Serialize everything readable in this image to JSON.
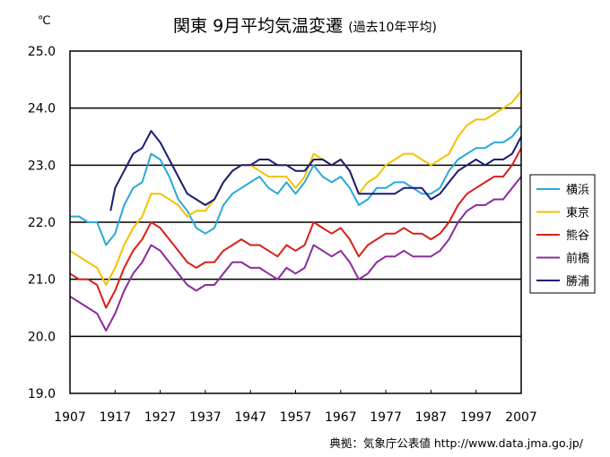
{
  "chart_data": {
    "type": "line",
    "title": "関東 9月平均気温変遷",
    "subtitle": "(過去10年平均)",
    "ylabel": "℃",
    "source": "典拠：気象庁公表値 http://www.data.jma.go.jp/",
    "ylim": [
      19.0,
      25.0
    ],
    "xlim": [
      1907,
      2007
    ],
    "y_ticks": [
      "19.0",
      "20.0",
      "21.0",
      "22.0",
      "23.0",
      "24.0",
      "25.0"
    ],
    "x_ticks": [
      "1907",
      "1917",
      "1927",
      "1937",
      "1947",
      "1957",
      "1967",
      "1977",
      "1987",
      "1997",
      "2007"
    ],
    "grid": true,
    "legend_position": "right",
    "series": [
      {
        "name": "横浜",
        "color": "#29a9d8",
        "x": [
          1907,
          1909,
          1911,
          1913,
          1915,
          1917,
          1919,
          1921,
          1923,
          1925,
          1927,
          1929,
          1931,
          1933,
          1935,
          1937,
          1939,
          1941,
          1943,
          1945,
          1947,
          1949,
          1951,
          1953,
          1955,
          1957,
          1959,
          1961,
          1963,
          1965,
          1967,
          1969,
          1971,
          1973,
          1975,
          1977,
          1979,
          1981,
          1983,
          1985,
          1987,
          1989,
          1991,
          1993,
          1995,
          1997,
          1999,
          2001,
          2003,
          2005,
          2007
        ],
        "values": [
          22.1,
          22.1,
          22.0,
          22.0,
          21.6,
          21.8,
          22.3,
          22.6,
          22.7,
          23.2,
          23.1,
          22.8,
          22.4,
          22.2,
          21.9,
          21.8,
          21.9,
          22.3,
          22.5,
          22.6,
          22.7,
          22.8,
          22.6,
          22.5,
          22.7,
          22.5,
          22.7,
          23.0,
          22.8,
          22.7,
          22.8,
          22.6,
          22.3,
          22.4,
          22.6,
          22.6,
          22.7,
          22.7,
          22.6,
          22.5,
          22.5,
          22.6,
          22.9,
          23.1,
          23.2,
          23.3,
          23.3,
          23.4,
          23.4,
          23.5,
          23.7
        ]
      },
      {
        "name": "東京",
        "color": "#f2c200",
        "x": [
          1907,
          1909,
          1911,
          1913,
          1915,
          1917,
          1919,
          1921,
          1923,
          1925,
          1927,
          1929,
          1931,
          1933,
          1935,
          1937,
          1939,
          1941,
          1943,
          1945,
          1947,
          1949,
          1951,
          1953,
          1955,
          1957,
          1959,
          1961,
          1963,
          1965,
          1967,
          1969,
          1971,
          1973,
          1975,
          1977,
          1979,
          1981,
          1983,
          1985,
          1987,
          1989,
          1991,
          1993,
          1995,
          1997,
          1999,
          2001,
          2003,
          2005,
          2007
        ],
        "values": [
          21.5,
          21.4,
          21.3,
          21.2,
          20.9,
          21.2,
          21.6,
          21.9,
          22.1,
          22.5,
          22.5,
          22.4,
          22.3,
          22.1,
          22.2,
          22.2,
          22.4,
          22.7,
          22.9,
          23.0,
          23.0,
          22.9,
          22.8,
          22.8,
          22.8,
          22.6,
          22.8,
          23.2,
          23.1,
          23.0,
          23.1,
          22.9,
          22.5,
          22.7,
          22.8,
          23.0,
          23.1,
          23.2,
          23.2,
          23.1,
          23.0,
          23.1,
          23.2,
          23.5,
          23.7,
          23.8,
          23.8,
          23.9,
          24.0,
          24.1,
          24.3
        ]
      },
      {
        "name": "熊谷",
        "color": "#d82018",
        "x": [
          1907,
          1909,
          1911,
          1913,
          1915,
          1917,
          1919,
          1921,
          1923,
          1925,
          1927,
          1929,
          1931,
          1933,
          1935,
          1937,
          1939,
          1941,
          1943,
          1945,
          1947,
          1949,
          1951,
          1953,
          1955,
          1957,
          1959,
          1961,
          1963,
          1965,
          1967,
          1969,
          1971,
          1973,
          1975,
          1977,
          1979,
          1981,
          1983,
          1985,
          1987,
          1989,
          1991,
          1993,
          1995,
          1997,
          1999,
          2001,
          2003,
          2005,
          2007
        ],
        "values": [
          21.1,
          21.0,
          21.0,
          20.9,
          20.5,
          20.8,
          21.2,
          21.5,
          21.7,
          22.0,
          21.9,
          21.7,
          21.5,
          21.3,
          21.2,
          21.3,
          21.3,
          21.5,
          21.6,
          21.7,
          21.6,
          21.6,
          21.5,
          21.4,
          21.6,
          21.5,
          21.6,
          22.0,
          21.9,
          21.8,
          21.9,
          21.7,
          21.4,
          21.6,
          21.7,
          21.8,
          21.8,
          21.9,
          21.8,
          21.8,
          21.7,
          21.8,
          22.0,
          22.3,
          22.5,
          22.6,
          22.7,
          22.8,
          22.8,
          23.0,
          23.3
        ]
      },
      {
        "name": "前橋",
        "color": "#8b2b9e",
        "x": [
          1907,
          1909,
          1911,
          1913,
          1915,
          1917,
          1919,
          1921,
          1923,
          1925,
          1927,
          1929,
          1931,
          1933,
          1935,
          1937,
          1939,
          1941,
          1943,
          1945,
          1947,
          1949,
          1951,
          1953,
          1955,
          1957,
          1959,
          1961,
          1963,
          1965,
          1967,
          1969,
          1971,
          1973,
          1975,
          1977,
          1979,
          1981,
          1983,
          1985,
          1987,
          1989,
          1991,
          1993,
          1995,
          1997,
          1999,
          2001,
          2003,
          2005,
          2007
        ],
        "values": [
          20.7,
          20.6,
          20.5,
          20.4,
          20.1,
          20.4,
          20.8,
          21.1,
          21.3,
          21.6,
          21.5,
          21.3,
          21.1,
          20.9,
          20.8,
          20.9,
          20.9,
          21.1,
          21.3,
          21.3,
          21.2,
          21.2,
          21.1,
          21.0,
          21.2,
          21.1,
          21.2,
          21.6,
          21.5,
          21.4,
          21.5,
          21.3,
          21.0,
          21.1,
          21.3,
          21.4,
          21.4,
          21.5,
          21.4,
          21.4,
          21.4,
          21.5,
          21.7,
          22.0,
          22.2,
          22.3,
          22.3,
          22.4,
          22.4,
          22.6,
          22.8
        ]
      },
      {
        "name": "勝浦",
        "color": "#1a1a7a",
        "x": [
          1916,
          1917,
          1919,
          1921,
          1923,
          1925,
          1927,
          1929,
          1931,
          1933,
          1935,
          1937,
          1939,
          1941,
          1943,
          1945,
          1947,
          1949,
          1951,
          1953,
          1955,
          1957,
          1959,
          1961,
          1963,
          1965,
          1967,
          1969,
          1971,
          1973,
          1975,
          1977,
          1979,
          1981,
          1983,
          1985,
          1987,
          1989,
          1991,
          1993,
          1995,
          1997,
          1999,
          2001,
          2003,
          2005,
          2007
        ],
        "values": [
          22.2,
          22.6,
          22.9,
          23.2,
          23.3,
          23.6,
          23.4,
          23.1,
          22.8,
          22.5,
          22.4,
          22.3,
          22.4,
          22.7,
          22.9,
          23.0,
          23.0,
          23.1,
          23.1,
          23.0,
          23.0,
          22.9,
          22.9,
          23.1,
          23.1,
          23.0,
          23.1,
          22.9,
          22.5,
          22.5,
          22.5,
          22.5,
          22.5,
          22.6,
          22.6,
          22.6,
          22.4,
          22.5,
          22.7,
          22.9,
          23.0,
          23.1,
          23.0,
          23.1,
          23.1,
          23.2,
          23.5
        ]
      }
    ]
  }
}
